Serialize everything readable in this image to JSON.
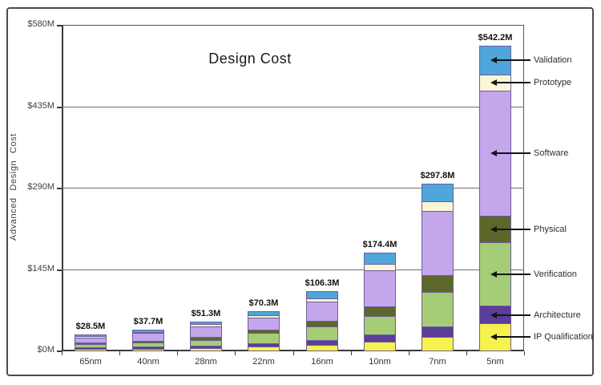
{
  "title": "Design Cost",
  "y_axis_title": "Advanced Design Cost",
  "chart_data": {
    "type": "bar",
    "stacked": true,
    "title": "Design Cost",
    "ylabel": "Advanced Design Cost",
    "xlabel": "",
    "ylim": [
      0,
      580
    ],
    "grid": true,
    "legend_position": "right",
    "categories": [
      "65nm",
      "40nm",
      "28nm",
      "22nm",
      "16nm",
      "10nm",
      "7nm",
      "5nm"
    ],
    "yticks": [
      {
        "value": 0,
        "label": "$0M"
      },
      {
        "value": 145,
        "label": "$145M"
      },
      {
        "value": 290,
        "label": "$290M"
      },
      {
        "value": 435,
        "label": "$435M"
      },
      {
        "value": 580,
        "label": "$580M"
      }
    ],
    "series": [
      {
        "name": "IP Qualification",
        "color": "#F6F14F",
        "values": [
          2.0,
          2.7,
          3.7,
          7.0,
          10.0,
          15.8,
          23.0,
          48.0
        ]
      },
      {
        "name": "Architecture",
        "color": "#5B3E99",
        "values": [
          2.0,
          2.6,
          3.5,
          4.0,
          7.0,
          12.0,
          19.0,
          31.0
        ]
      },
      {
        "name": "Verification",
        "color": "#A4CD76",
        "values": [
          6.0,
          8.0,
          11.0,
          21.0,
          25.5,
          33.5,
          62.0,
          113.0
        ]
      },
      {
        "name": "Physical",
        "color": "#5C672A",
        "values": [
          2.5,
          3.3,
          4.5,
          5.0,
          10.0,
          16.8,
          28.7,
          47.0
        ]
      },
      {
        "name": "Software",
        "color": "#C4A6EC",
        "values": [
          12.0,
          16.2,
          22.0,
          23.5,
          36.5,
          66.3,
          117.1,
          224.2
        ]
      },
      {
        "name": "Prototype",
        "color": "#FAF6D5",
        "values": [
          1.2,
          1.6,
          2.2,
          2.3,
          4.3,
          11.0,
          16.7,
          28.0
        ]
      },
      {
        "name": "Validation",
        "color": "#4EA6DA",
        "values": [
          2.8,
          3.3,
          4.4,
          7.5,
          13.0,
          19.0,
          31.3,
          51.0
        ]
      }
    ],
    "totals": [
      28.5,
      37.7,
      51.3,
      70.3,
      106.3,
      174.4,
      297.8,
      542.2
    ],
    "total_labels": [
      "$28.5M",
      "$37.7M",
      "$51.3M",
      "$70.3M",
      "$106.3M",
      "$174.4M",
      "$297.8M",
      "$542.2M"
    ],
    "legend": [
      "Validation",
      "Prototype",
      "Software",
      "Physical",
      "Verification",
      "Architecture",
      "IP Qualification"
    ]
  },
  "colors": {
    "axis": "#3a3a3a",
    "gridline": "#6f6f6f",
    "bar_outline": "#6d5d99",
    "frame_border": "#4b4b4b",
    "arrow": "#141414"
  }
}
